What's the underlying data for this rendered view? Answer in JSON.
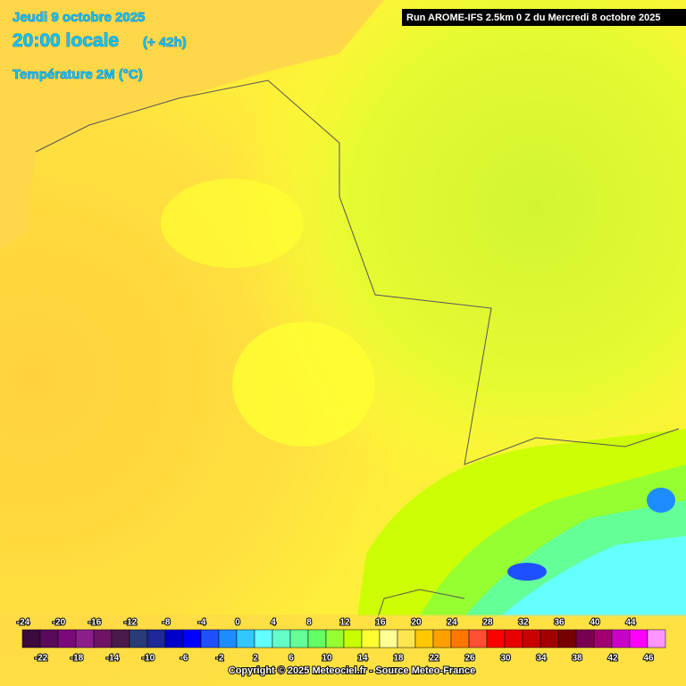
{
  "header": {
    "date": "Jeudi 9 octobre 2025",
    "time": "20:00 locale",
    "lead": "(+ 42h)",
    "parameter": "Température 2M (°C)",
    "run": "Run AROME-IFS 2.5km 0 Z du Mercredi 8 octobre 2025"
  },
  "legend": {
    "values": [
      -24,
      -22,
      -20,
      -18,
      -16,
      -14,
      -12,
      -10,
      -8,
      -6,
      -4,
      -2,
      0,
      2,
      4,
      6,
      8,
      10,
      12,
      14,
      16,
      18,
      20,
      22,
      24,
      26,
      28,
      30,
      32,
      34,
      36,
      38,
      40,
      42,
      44,
      46
    ],
    "colors": [
      "#3c0a3c",
      "#5a0a5a",
      "#7a0a7a",
      "#8c1e8c",
      "#6e1464",
      "#4a1a4a",
      "#283c78",
      "#1e2896",
      "#0000c8",
      "#0000ff",
      "#1e50ff",
      "#1e8cff",
      "#32c8ff",
      "#64ffff",
      "#64ffc8",
      "#64ff96",
      "#64ff64",
      "#96ff32",
      "#c8ff00",
      "#ffff32",
      "#ffff96",
      "#ffe650",
      "#ffc800",
      "#ffa000",
      "#ff7800",
      "#ff5032",
      "#ff0000",
      "#e60000",
      "#c80000",
      "#a00000",
      "#780000",
      "#780050",
      "#a0006e",
      "#c800c8",
      "#ff00ff",
      "#ff96ff"
    ]
  },
  "footer": {
    "copyright": "Copyright © 2025 Meteociel.fr - Source Meteo-France"
  }
}
